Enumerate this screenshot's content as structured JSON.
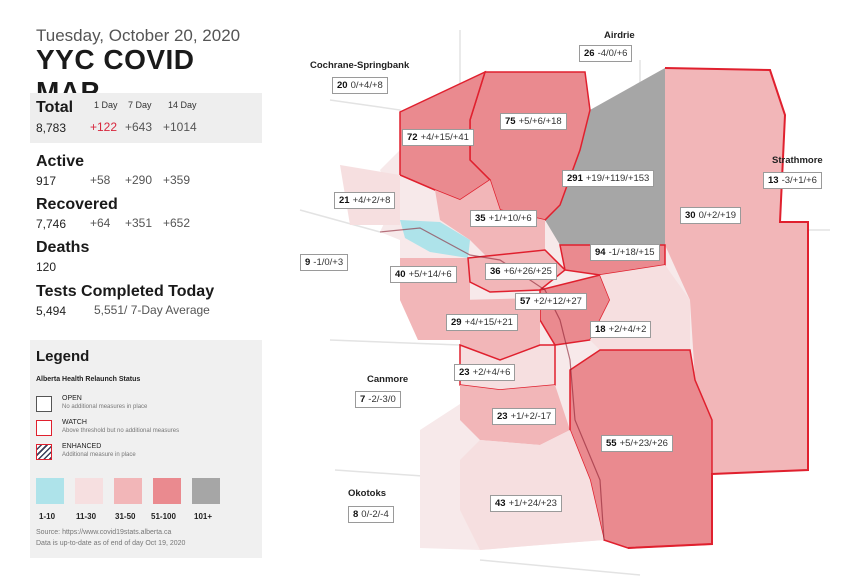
{
  "header": {
    "date": "Tuesday, October 20, 2020",
    "title": "YYC COVID MAP"
  },
  "stats": {
    "headers": {
      "d1": "1 Day",
      "d7": "7 Day",
      "d14": "14 Day"
    },
    "total": {
      "label": "Total",
      "value": "8,783",
      "d1": "+122",
      "d7": "+643",
      "d14": "+1014"
    },
    "active": {
      "label": "Active",
      "value": "917",
      "d1": "+58",
      "d7": "+290",
      "d14": "+359"
    },
    "recovered": {
      "label": "Recovered",
      "value": "7,746",
      "d1": "+64",
      "d7": "+351",
      "d14": "+652"
    },
    "deaths": {
      "label": "Deaths",
      "value": "120"
    },
    "tests": {
      "label": "Tests Completed Today",
      "value": "5,494",
      "average": "5,551/ 7-Day Average"
    }
  },
  "legend": {
    "title": "Legend",
    "subtitle": "Alberta Health Relaunch Status",
    "statuses": [
      {
        "name": "OPEN",
        "desc": "No additional measures in place"
      },
      {
        "name": "WATCH",
        "desc": "Above threshold but no additional measures"
      },
      {
        "name": "ENHANCED",
        "desc": "Additional measure in place"
      }
    ],
    "ranges": [
      {
        "label": "1-10",
        "color": "#aee3ea"
      },
      {
        "label": "11-30",
        "color": "#f6dfe0"
      },
      {
        "label": "31-50",
        "color": "#f2b6b8"
      },
      {
        "label": "51-100",
        "color": "#ea8a8f"
      },
      {
        "label": "101+",
        "color": "#a6a6a6"
      }
    ],
    "source": "Source: https://www.covid19stats.alberta.ca",
    "updated": "Data is up-to-date as of end of day Oct 19, 2020"
  },
  "colors": {
    "watch_border": "#e0202e",
    "range_1_10": "#aee3ea",
    "range_11_30": "#f6dfe0",
    "range_31_50": "#f2b6b8",
    "range_51_100": "#ea8a8f",
    "range_101_plus": "#a6a6a6"
  },
  "places": {
    "cochrane": "Cochrane-Springbank",
    "airdrie": "Airdrie",
    "strathmore": "Strathmore",
    "canmore": "Canmore",
    "okotoks": "Okotoks"
  },
  "areas": [
    {
      "id": "cochrane",
      "count": "20",
      "change": "0/+4/+8"
    },
    {
      "id": "airdrie",
      "count": "26",
      "change": "-4/0/+6"
    },
    {
      "id": "nw-72",
      "count": "72",
      "change": "+4/+15/+41"
    },
    {
      "id": "n-75",
      "count": "75",
      "change": "+5/+6/+18"
    },
    {
      "id": "ne-291",
      "count": "291",
      "change": "+19/+119/+153"
    },
    {
      "id": "strathmore",
      "count": "13",
      "change": "-3/+1/+6"
    },
    {
      "id": "w-21",
      "count": "21",
      "change": "+4/+2/+8"
    },
    {
      "id": "nc-35",
      "count": "35",
      "change": "+1/+10/+6"
    },
    {
      "id": "e-30",
      "count": "30",
      "change": "0/+2/+19"
    },
    {
      "id": "w-9",
      "count": "9",
      "change": "-1/0/+3"
    },
    {
      "id": "e-94",
      "count": "94",
      "change": "-1/+18/+15"
    },
    {
      "id": "w-40",
      "count": "40",
      "change": "+5/+14/+6"
    },
    {
      "id": "c-36",
      "count": "36",
      "change": "+6/+26/+25"
    },
    {
      "id": "c-57",
      "count": "57",
      "change": "+2/+12/+27"
    },
    {
      "id": "sw-29",
      "count": "29",
      "change": "+4/+15/+21"
    },
    {
      "id": "se-18",
      "count": "18",
      "change": "+2/+4/+2"
    },
    {
      "id": "s-23a",
      "count": "23",
      "change": "+2/+4/+6"
    },
    {
      "id": "canmore",
      "count": "7",
      "change": "-2/-3/0"
    },
    {
      "id": "s-23b",
      "count": "23",
      "change": "+1/+2/-17"
    },
    {
      "id": "se-55",
      "count": "55",
      "change": "+5/+23/+26"
    },
    {
      "id": "okotoks",
      "count": "8",
      "change": "0/-2/-4"
    },
    {
      "id": "s-43",
      "count": "43",
      "change": "+1/+24/+23"
    }
  ]
}
